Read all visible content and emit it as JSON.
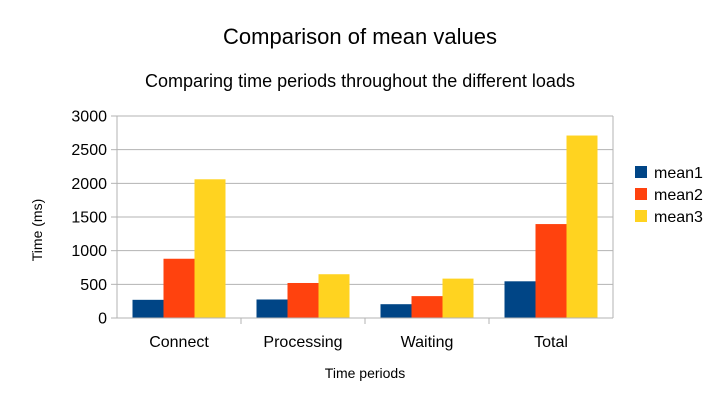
{
  "chart_data": {
    "type": "bar",
    "title": "Comparison of mean values",
    "subtitle": "Comparing time periods throughout the different loads",
    "xlabel": "Time periods",
    "ylabel": "Time (ms)",
    "categories": [
      "Connect",
      "Processing",
      "Waiting",
      "Total"
    ],
    "series": [
      {
        "name": "mean1",
        "color": "#004586",
        "values": [
          270,
          275,
          205,
          545
        ]
      },
      {
        "name": "mean2",
        "color": "#ff420e",
        "values": [
          880,
          520,
          325,
          1395
        ]
      },
      {
        "name": "mean3",
        "color": "#ffd320",
        "values": [
          2060,
          650,
          585,
          2710
        ]
      }
    ],
    "ylim": [
      0,
      3000
    ],
    "yticks": [
      0,
      500,
      1000,
      1500,
      2000,
      2500,
      3000
    ],
    "grid": true,
    "legend": "right"
  }
}
